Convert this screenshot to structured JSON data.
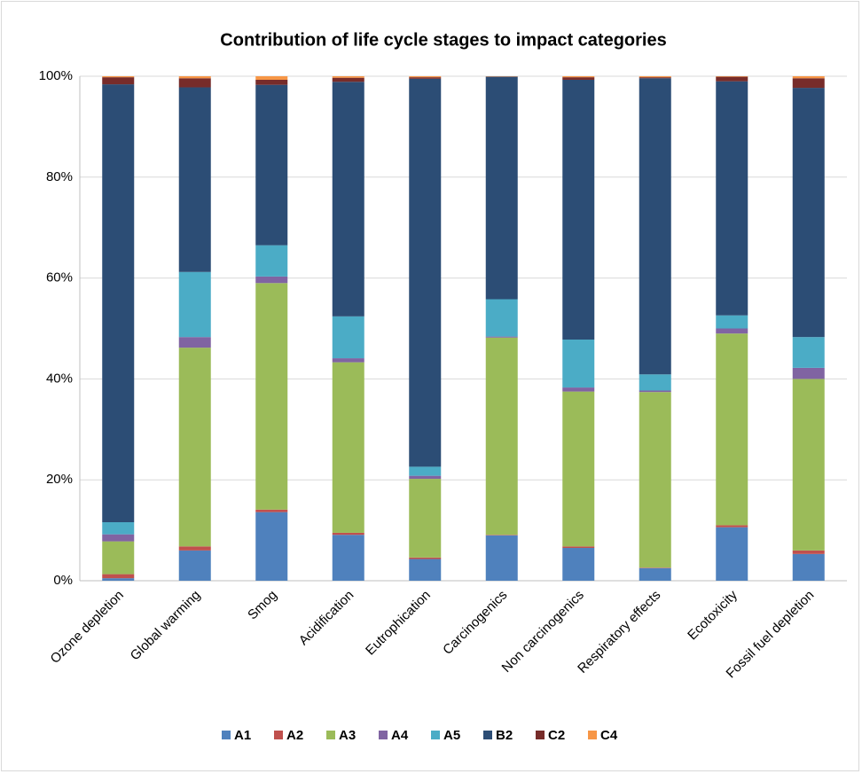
{
  "chart_data": {
    "type": "stacked_bar",
    "title": "Contribution of life cycle stages to impact categories",
    "categories": [
      "Ozone depletion",
      "Global warming",
      "Smog",
      "Acidification",
      "Eutrophication",
      "Carcinogenics",
      "Non carcinogenics",
      "Respiratory effects",
      "Ecotoxicity",
      "Fossil fuel depletion"
    ],
    "series": [
      {
        "name": "A1",
        "color": "#4f81bd",
        "values": [
          0.5,
          6.0,
          13.6,
          9.1,
          4.3,
          9.0,
          6.5,
          2.5,
          10.6,
          5.3
        ]
      },
      {
        "name": "A2",
        "color": "#c0504d",
        "values": [
          0.8,
          0.8,
          0.5,
          0.4,
          0.3,
          0.1,
          0.3,
          0.1,
          0.4,
          0.7
        ]
      },
      {
        "name": "A3",
        "color": "#9bbb59",
        "values": [
          6.5,
          39.4,
          44.9,
          33.8,
          15.6,
          39.1,
          30.7,
          34.8,
          38.0,
          34.0
        ]
      },
      {
        "name": "A4",
        "color": "#8064a2",
        "values": [
          1.4,
          2.1,
          1.3,
          0.8,
          0.6,
          0.2,
          0.8,
          0.3,
          1.0,
          2.2
        ]
      },
      {
        "name": "A5",
        "color": "#4bacc6",
        "values": [
          2.4,
          12.9,
          6.2,
          8.3,
          1.8,
          7.4,
          9.5,
          3.2,
          2.6,
          6.1
        ]
      },
      {
        "name": "B2",
        "color": "#2c4d75",
        "values": [
          86.8,
          36.6,
          31.8,
          46.5,
          76.9,
          44.1,
          51.5,
          58.7,
          46.4,
          49.4
        ]
      },
      {
        "name": "C2",
        "color": "#772c2a",
        "values": [
          1.4,
          1.8,
          1.0,
          0.8,
          0.3,
          0.05,
          0.5,
          0.2,
          0.9,
          1.9
        ]
      },
      {
        "name": "C4",
        "color": "#f79646",
        "values": [
          0.2,
          0.4,
          0.7,
          0.3,
          0.2,
          0.05,
          0.2,
          0.2,
          0.1,
          0.4
        ]
      }
    ],
    "ylim": [
      0,
      100
    ],
    "yticks": [
      {
        "value": 0,
        "label": "0%"
      },
      {
        "value": 20,
        "label": "20%"
      },
      {
        "value": 40,
        "label": "40%"
      },
      {
        "value": 60,
        "label": "60%"
      },
      {
        "value": 80,
        "label": "80%"
      },
      {
        "value": 100,
        "label": "100%"
      }
    ],
    "grid": true,
    "legend": "bottom"
  }
}
